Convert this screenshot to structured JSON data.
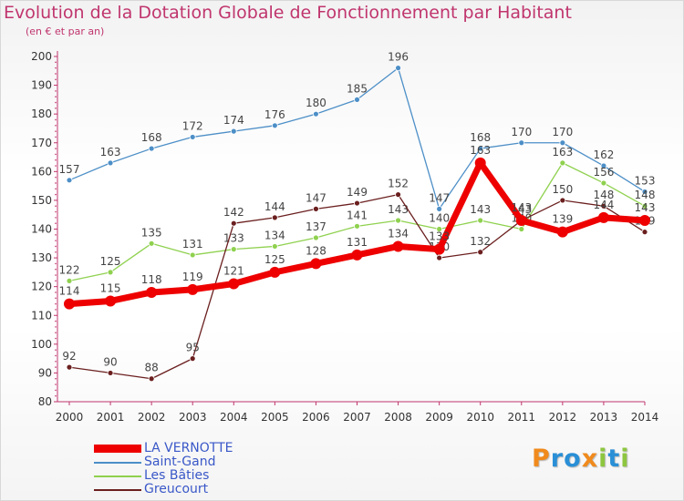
{
  "title": "Evolution de la Dotation Globale de Fonctionnement par Habitant",
  "subtitle": "(en € et par an)",
  "brand": {
    "text": "Proxiti",
    "letters": [
      "P",
      "r",
      "o",
      "x",
      "i",
      "t",
      "i"
    ],
    "letter_colors": [
      "#f08a1c",
      "#2a8fd6",
      "#2a8fd6",
      "#f08a1c",
      "#8dc63f",
      "#2a8fd6",
      "#8dc63f"
    ]
  },
  "chart_data": {
    "type": "line",
    "title": "Evolution de la Dotation Globale de Fonctionnement par Habitant",
    "subtitle": "(en € et par an)",
    "xlabel": "",
    "ylabel": "",
    "ylim": [
      80,
      200
    ],
    "yticks": [
      80,
      90,
      100,
      110,
      120,
      130,
      140,
      150,
      160,
      170,
      180,
      190,
      200
    ],
    "grid": false,
    "legend_position": "bottom-left",
    "x": [
      "2000",
      "2001",
      "2002",
      "2003",
      "2004",
      "2005",
      "2006",
      "2007",
      "2008",
      "2009",
      "2010",
      "2011",
      "2012",
      "2013",
      "2014"
    ],
    "series": [
      {
        "name": "Saint-Gand",
        "color": "#4d8fc7",
        "values": [
          157,
          163,
          168,
          172,
          174,
          176,
          180,
          185,
          196,
          147,
          168,
          170,
          170,
          162,
          153
        ]
      },
      {
        "name": "Les Bâties",
        "color": "#8fd14f",
        "values": [
          122,
          125,
          135,
          131,
          133,
          134,
          137,
          141,
          143,
          140,
          143,
          140,
          163,
          156,
          148
        ]
      },
      {
        "name": "Greucourt",
        "color": "#6b1f1f",
        "values": [
          92,
          90,
          88,
          95,
          142,
          144,
          147,
          149,
          152,
          130,
          132,
          143,
          150,
          148,
          139
        ]
      },
      {
        "name": "LA VERNOTTE",
        "color": "#ee0000",
        "values": [
          114,
          115,
          118,
          119,
          121,
          125,
          128,
          131,
          134,
          133,
          163,
          143,
          139,
          144,
          143
        ]
      }
    ],
    "legend_order": [
      "LA VERNOTTE",
      "Saint-Gand",
      "Les Bâties",
      "Greucourt"
    ]
  }
}
